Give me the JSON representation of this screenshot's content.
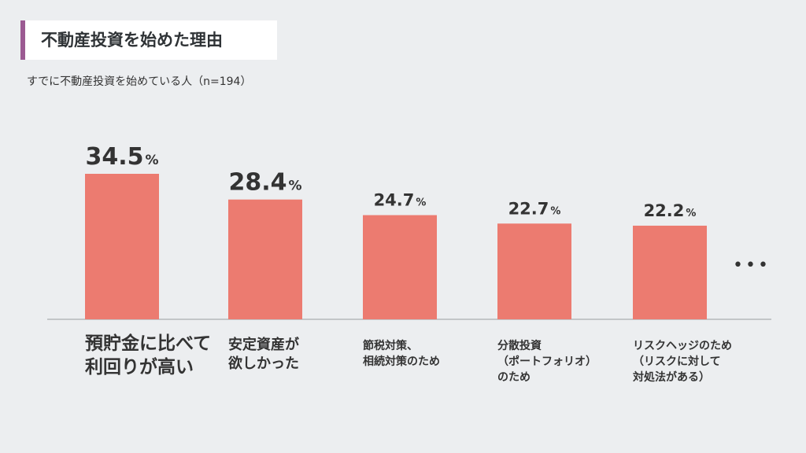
{
  "title": "不動産投資を始めた理由",
  "subtitle": "すでに不動産投資を始めている人（n=194）",
  "colors": {
    "bar": "#ec7b70",
    "title_accent": "#9b5a92",
    "baseline": "#b5b8bb",
    "text": "#333333"
  },
  "chart_data": {
    "type": "bar",
    "title": "不動産投資を始めた理由",
    "subtitle": "すでに不動産投資を始めている人（n=194）",
    "unit": "%",
    "categories": [
      [
        "預貯金に比べて",
        "利回りが高い"
      ],
      [
        "安定資産が",
        "欲しかった"
      ],
      [
        "節税対策、",
        "相続対策のため"
      ],
      [
        "分散投資",
        "（ポートフォリオ）",
        "のため"
      ],
      [
        "リスクヘッジのため",
        "（リスクに対して",
        "対処法がある）"
      ]
    ],
    "values": [
      34.5,
      28.4,
      24.7,
      22.7,
      22.2
    ],
    "value_labels": [
      "34.5",
      "28.4",
      "24.7",
      "22.7",
      "22.2"
    ],
    "ylim": [
      0,
      34.5
    ],
    "continuation": "•••"
  }
}
